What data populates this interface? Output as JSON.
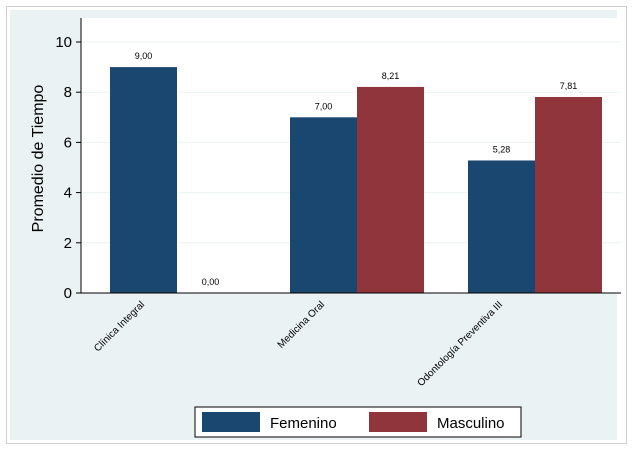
{
  "chart_data": {
    "type": "bar",
    "title": "",
    "xlabel": "",
    "ylabel": "Promedio de Tiempo",
    "ylim": [
      0,
      10
    ],
    "yticks": [
      0,
      2,
      4,
      6,
      8,
      10
    ],
    "grid": true,
    "legend_position": "bottom",
    "categories": [
      "Clínica Integral",
      "Medicina Oral",
      "Odontología Preventiva III"
    ],
    "series": [
      {
        "name": "Femenino",
        "color": "#1a476f",
        "values": [
          9.0,
          7.0,
          5.28
        ],
        "labels": [
          "9,00",
          "7,00",
          "5,28"
        ]
      },
      {
        "name": "Masculino",
        "color": "#90353b",
        "values": [
          0.0,
          8.21,
          7.81
        ],
        "labels": [
          "0,00",
          "8,21",
          "7,81"
        ]
      }
    ]
  }
}
